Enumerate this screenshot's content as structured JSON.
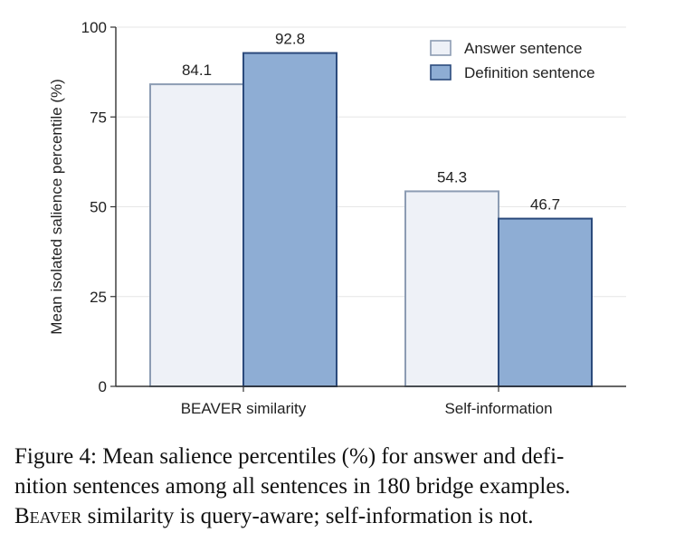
{
  "chart_data": {
    "type": "bar",
    "categories": [
      "BEAVER similarity",
      "Self-information"
    ],
    "series": [
      {
        "name": "Answer sentence",
        "values": [
          84.1,
          54.3
        ],
        "value_labels": [
          "84.1",
          "54.3"
        ],
        "fill": "#eef1f7",
        "stroke": "#8c9cb3"
      },
      {
        "name": "Definition sentence",
        "values": [
          92.8,
          46.7
        ],
        "value_labels": [
          "92.8",
          "46.7"
        ],
        "fill": "#8eadd4",
        "stroke": "#2b4a7c"
      }
    ],
    "ylabel": "Mean isolated salience percentile (%)",
    "ylim": [
      0,
      100
    ],
    "yticks": [
      0,
      25,
      50,
      75,
      100
    ],
    "ytick_labels": [
      "0",
      "25",
      "50",
      "75",
      "100"
    ],
    "grid": true,
    "legend_position": "top-right"
  },
  "caption": {
    "line1": "Figure 4: Mean salience percentiles (%) for answer and defi-",
    "line2": "nition sentences among all sentences in 180 bridge examples.",
    "line3_smallcaps": "Beaver",
    "line3_rest": " similarity is query-aware; self-information is not."
  }
}
